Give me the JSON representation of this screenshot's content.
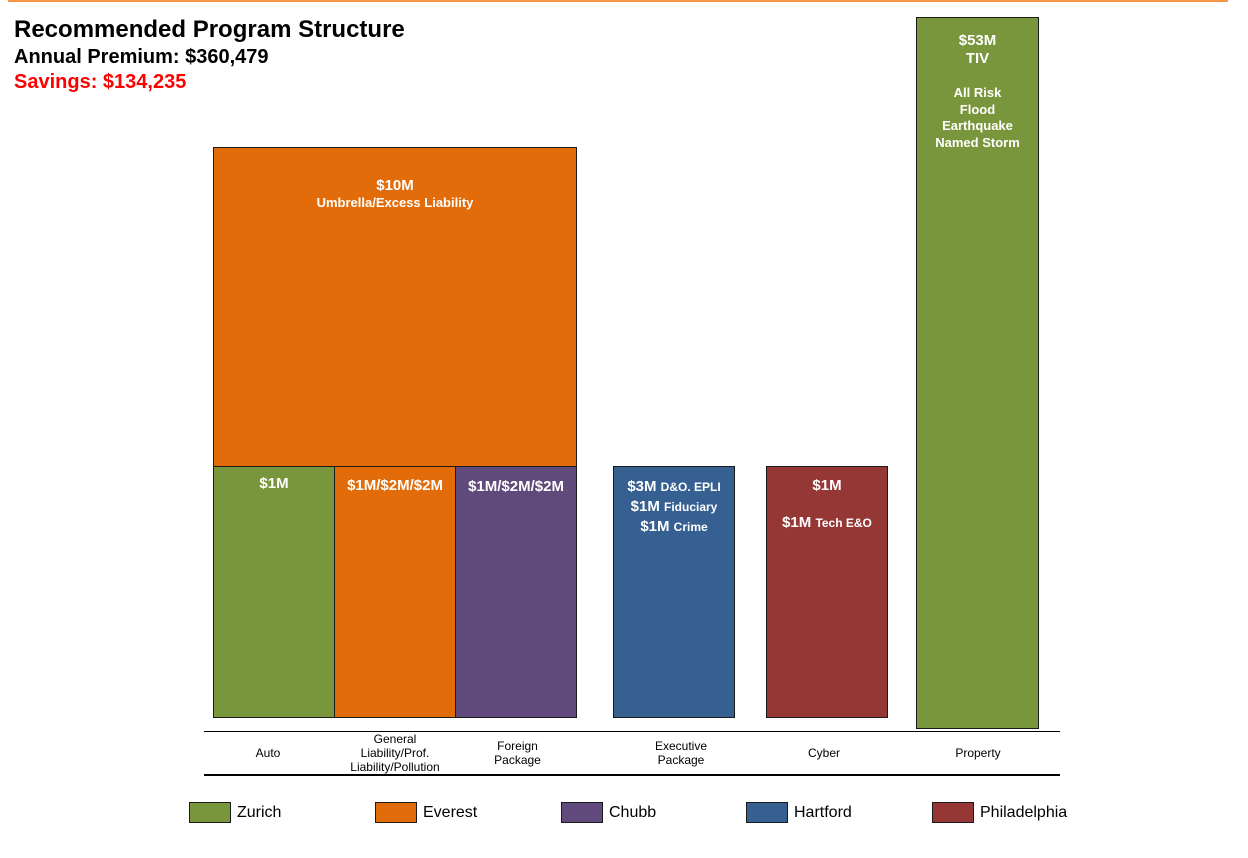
{
  "colors": {
    "zurich": "#7a963c",
    "everest": "#e36c0a",
    "chubb": "#604a7b",
    "hartford": "#376092",
    "philadelphia": "#953735",
    "accent": "#f79646",
    "savings_text": "#ff0000"
  },
  "header": {
    "title": "Recommended Program Structure",
    "premium": "Annual Premium: $360,479",
    "savings": "Savings: $134,235"
  },
  "blocks": {
    "umbrella": {
      "limit": "$10M",
      "label": "Umbrella/Excess Liability",
      "carrier": "everest"
    },
    "auto": {
      "limit": "$1M",
      "carrier": "zurich"
    },
    "general_liability": {
      "limit": "$1M/$2M/$2M",
      "carrier": "everest"
    },
    "foreign_package": {
      "limit": "$1M/$2M/$2M",
      "carrier": "chubb"
    },
    "executive": {
      "carrier": "hartford",
      "lines": [
        {
          "amount": "$3M",
          "coverage": "D&O. EPLI"
        },
        {
          "amount": "$1M",
          "coverage": "Fiduciary"
        },
        {
          "amount": "$1M",
          "coverage": "Crime"
        }
      ]
    },
    "cyber": {
      "carrier": "philadelphia",
      "limit": "$1M",
      "second_amount": "$1M",
      "second_coverage": "Tech E&O"
    },
    "property": {
      "carrier": "zurich",
      "limit": "$53M",
      "limit_label": "TIV",
      "perils": [
        "All Risk",
        "Flood",
        "Earthquake",
        "Named Storm"
      ]
    }
  },
  "categories": {
    "auto": "Auto",
    "general_liability": [
      "General",
      "Liability/Prof.",
      "Liability/Pollution"
    ],
    "foreign_package": [
      "Foreign",
      "Package"
    ],
    "executive": [
      "Executive",
      "Package"
    ],
    "cyber": "Cyber",
    "property": "Property"
  },
  "legend": [
    {
      "label": "Zurich",
      "color": "#7a963c"
    },
    {
      "label": "Everest",
      "color": "#e36c0a"
    },
    {
      "label": "Chubb",
      "color": "#604a7b"
    },
    {
      "label": "Hartford",
      "color": "#376092"
    },
    {
      "label": "Philadelphia",
      "color": "#953735"
    }
  ]
}
